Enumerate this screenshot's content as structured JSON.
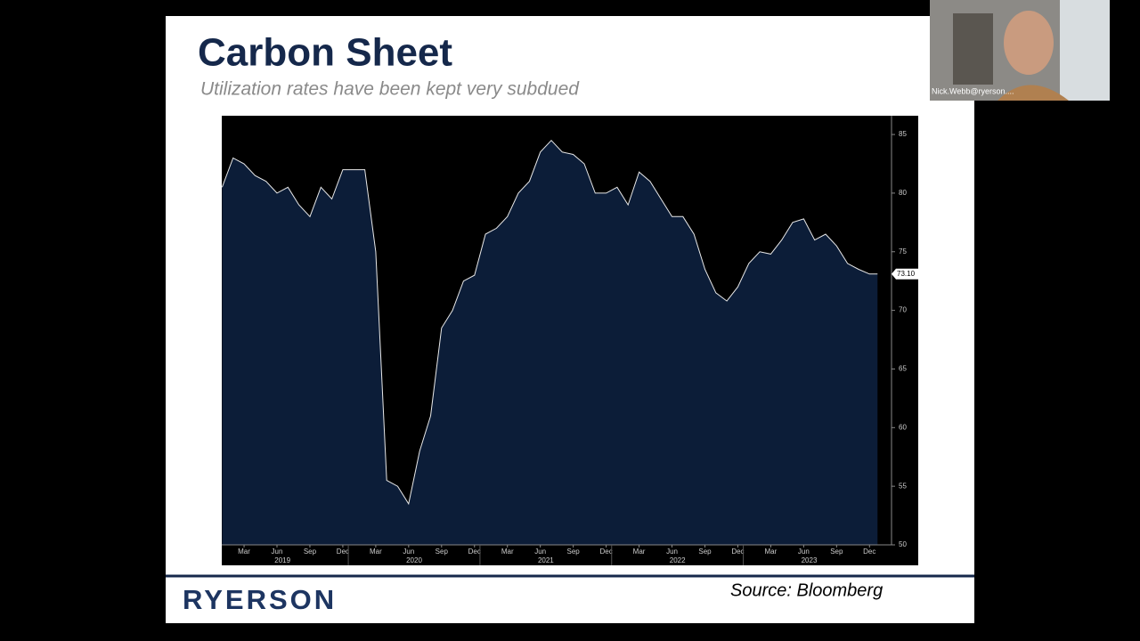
{
  "slide": {
    "title": "Carbon Sheet",
    "subtitle": "Utilization rates have been kept very subdued",
    "logo": "RYERSON",
    "source": "Source: Bloomberg"
  },
  "video": {
    "name": "Nick.Webb@ryerson...."
  },
  "chart_data": {
    "type": "area",
    "x": [
      "2019-01",
      "2019-02",
      "2019-03",
      "2019-04",
      "2019-05",
      "2019-06",
      "2019-07",
      "2019-08",
      "2019-09",
      "2019-10",
      "2019-11",
      "2019-12",
      "2020-01",
      "2020-02",
      "2020-03",
      "2020-04",
      "2020-05",
      "2020-06",
      "2020-07",
      "2020-08",
      "2020-09",
      "2020-10",
      "2020-11",
      "2020-12",
      "2021-01",
      "2021-02",
      "2021-03",
      "2021-04",
      "2021-05",
      "2021-06",
      "2021-07",
      "2021-08",
      "2021-09",
      "2021-10",
      "2021-11",
      "2021-12",
      "2022-01",
      "2022-02",
      "2022-03",
      "2022-04",
      "2022-05",
      "2022-06",
      "2022-07",
      "2022-08",
      "2022-09",
      "2022-10",
      "2022-11",
      "2022-12",
      "2023-01",
      "2023-02",
      "2023-03",
      "2023-04",
      "2023-05",
      "2023-06",
      "2023-07",
      "2023-08",
      "2023-09",
      "2023-10",
      "2023-11",
      "2023-12"
    ],
    "values": [
      80.5,
      83,
      82.5,
      81.5,
      81,
      80,
      80.5,
      79,
      78,
      80.5,
      79.5,
      82,
      82,
      82,
      75,
      55.5,
      55,
      53.5,
      58,
      61,
      68.5,
      70,
      72.5,
      73,
      76.5,
      77,
      78,
      80,
      81,
      83.5,
      84.5,
      83.5,
      83.3,
      82.5,
      80,
      80,
      80.5,
      79,
      81.8,
      81,
      79.5,
      78,
      78,
      76.5,
      73.5,
      71.5,
      70.8,
      72,
      74,
      75,
      74.8,
      76,
      77.5,
      77.8,
      76,
      76.5,
      75.5,
      74,
      73.5,
      73.1
    ],
    "value_labels": [
      null,
      null,
      null,
      null,
      null,
      null,
      null,
      null,
      null,
      null,
      null,
      null,
      null,
      null,
      null,
      null,
      null,
      null,
      null,
      null,
      null,
      null,
      null,
      null,
      null,
      null,
      null,
      null,
      null,
      null,
      null,
      null,
      null,
      null,
      null,
      null,
      null,
      null,
      null,
      null,
      null,
      null,
      null,
      null,
      null,
      null,
      null,
      null,
      null,
      null,
      null,
      null,
      null,
      null,
      null,
      null,
      null,
      null,
      null,
      "73.10"
    ],
    "color": "#0c1d38",
    "line_color": "#e8e8e8",
    "ylim": [
      50,
      86.6
    ],
    "yticks": [
      50,
      55,
      60,
      65,
      70,
      75,
      80,
      85
    ],
    "y_axis_side": "right",
    "xticks": [
      {
        "value": "2019-03",
        "label": "Mar"
      },
      {
        "value": "2019-06",
        "label": "Jun"
      },
      {
        "value": "2019-09",
        "label": "Sep"
      },
      {
        "value": "2019-12",
        "label": "Dec"
      },
      {
        "value": "2020-03",
        "label": "Mar"
      },
      {
        "value": "2020-06",
        "label": "Jun"
      },
      {
        "value": "2020-09",
        "label": "Sep"
      },
      {
        "value": "2020-12",
        "label": "Dec"
      },
      {
        "value": "2021-03",
        "label": "Mar"
      },
      {
        "value": "2021-06",
        "label": "Jun"
      },
      {
        "value": "2021-09",
        "label": "Sep"
      },
      {
        "value": "2021-12",
        "label": "Dec"
      },
      {
        "value": "2022-03",
        "label": "Mar"
      },
      {
        "value": "2022-06",
        "label": "Jun"
      },
      {
        "value": "2022-09",
        "label": "Sep"
      },
      {
        "value": "2022-12",
        "label": "Dec"
      },
      {
        "value": "2023-03",
        "label": "Mar"
      },
      {
        "value": "2023-06",
        "label": "Jun"
      },
      {
        "value": "2023-09",
        "label": "Sep"
      },
      {
        "value": "2023-12",
        "label": "Dec"
      }
    ],
    "years": [
      "2019",
      "2020",
      "2021",
      "2022",
      "2023"
    ]
  }
}
